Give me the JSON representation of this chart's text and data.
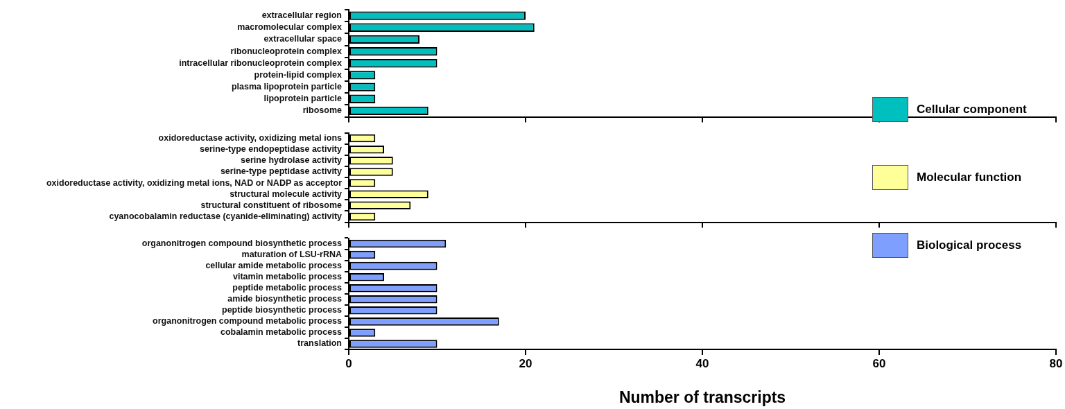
{
  "chart_data": [
    {
      "type": "bar",
      "orientation": "horizontal",
      "categories": [
        "extracellular region",
        "macromolecular complex",
        "extracellular space",
        "ribonucleoprotein complex",
        "intracellular ribonucleoprotein complex",
        "protein-lipid complex",
        "plasma lipoprotein particle",
        "lipoprotein particle",
        "ribosome"
      ],
      "series": [
        {
          "name": "Cellular component",
          "color": "#00bfbf",
          "values": [
            20,
            21,
            8,
            10,
            10,
            3,
            3,
            3,
            9
          ]
        }
      ],
      "xlim": [
        0,
        80
      ],
      "xticks": [
        0,
        20,
        40,
        60,
        80
      ],
      "tick_labels": "y",
      "grid": false,
      "legend": "bottom right"
    },
    {
      "type": "bar",
      "orientation": "horizontal",
      "categories": [
        "oxidoreductase activity, oxidizing metal ions",
        "serine-type endopeptidase activity",
        "serine hydrolase activity",
        "serine-type peptidase activity",
        "oxidoreductase activity, oxidizing metal ions, NAD or NADP as acceptor",
        "structural molecule activity",
        "structural constituent of ribosome",
        "cyanocobalamin reductase (cyanide-eliminating) activity"
      ],
      "series": [
        {
          "name": "Molecular function",
          "color": "#ffff99",
          "values": [
            3,
            4,
            5,
            5,
            3,
            9,
            7,
            3
          ]
        }
      ],
      "xlim": [
        0,
        80
      ],
      "xticks": [
        0,
        20,
        40,
        60,
        80
      ],
      "tick_labels": "y",
      "grid": false,
      "legend": "right"
    },
    {
      "type": "bar",
      "orientation": "horizontal",
      "categories": [
        "organonitrogen compound biosynthetic process",
        "maturation of LSU-rRNA",
        "cellular amide metabolic process",
        "vitamin metabolic process",
        "peptide metabolic process",
        "amide biosynthetic process",
        "peptide biosynthetic process",
        "organonitrogen compound metabolic process",
        "cobalamin metabolic process",
        "translation"
      ],
      "series": [
        {
          "name": "Biological process",
          "color": "#7f9fff",
          "values": [
            11,
            3,
            10,
            4,
            10,
            10,
            10,
            17,
            3,
            10
          ]
        }
      ],
      "xlim": [
        0,
        80
      ],
      "xticks": [
        0,
        20,
        40,
        60,
        80
      ],
      "xlabel": "Number of transcripts",
      "grid": false,
      "legend": "top right"
    }
  ]
}
